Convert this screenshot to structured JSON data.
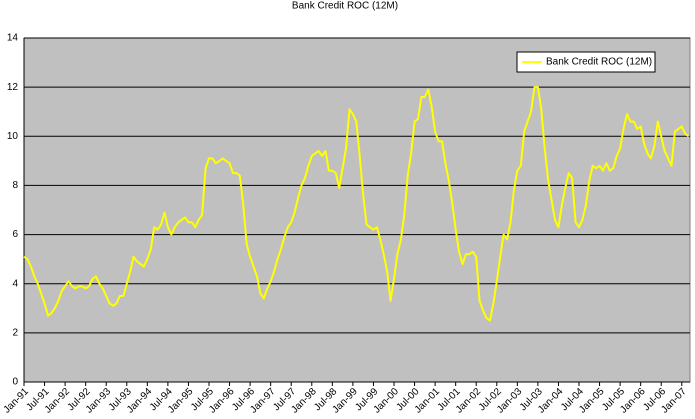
{
  "chart_data": {
    "type": "line",
    "title": "Bank Credit ROC (12M)",
    "categories": [
      "Jan-91",
      null,
      null,
      null,
      null,
      null,
      "Jul-91",
      null,
      null,
      null,
      null,
      null,
      "Jan-92",
      null,
      null,
      null,
      null,
      null,
      "Jul-92",
      null,
      null,
      null,
      null,
      null,
      "Jan-93",
      null,
      null,
      null,
      null,
      null,
      "Jul-93",
      null,
      null,
      null,
      null,
      null,
      "Jan-94",
      null,
      null,
      null,
      null,
      null,
      "Jul-94",
      null,
      null,
      null,
      null,
      null,
      "Jan-95",
      null,
      null,
      null,
      null,
      null,
      "Jul-95",
      null,
      null,
      null,
      null,
      null,
      "Jan-96",
      null,
      null,
      null,
      null,
      null,
      "Jul-96",
      null,
      null,
      null,
      null,
      null,
      "Jan-97",
      null,
      null,
      null,
      null,
      null,
      "Jul-97",
      null,
      null,
      null,
      null,
      null,
      "Jan-98",
      null,
      null,
      null,
      null,
      null,
      "Jul-98",
      null,
      null,
      null,
      null,
      null,
      "Jan-99",
      null,
      null,
      null,
      null,
      null,
      "Jul-99",
      null,
      null,
      null,
      null,
      null,
      "Jan-00",
      null,
      null,
      null,
      null,
      null,
      "Jul-00",
      null,
      null,
      null,
      null,
      null,
      "Jan-01",
      null,
      null,
      null,
      null,
      null,
      "Jul-01",
      null,
      null,
      null,
      null,
      null,
      "Jan-02",
      null,
      null,
      null,
      null,
      null,
      "Jul-02",
      null,
      null,
      null,
      null,
      null,
      "Jan-03",
      null,
      null,
      null,
      null,
      null,
      "Jul-03",
      null,
      null,
      null,
      null,
      null,
      "Jan-04",
      null,
      null,
      null,
      null,
      null,
      "Jul-04",
      null,
      null,
      null,
      null,
      null,
      "Jan-05",
      null,
      null,
      null,
      null,
      null,
      "Jul-05",
      null,
      null,
      null,
      null,
      null,
      "Jan-06",
      null,
      null,
      null,
      null,
      null,
      "Jul-06",
      null,
      null,
      null,
      null,
      null,
      "Jan-07",
      null,
      null
    ],
    "series": [
      {
        "name": "Bank Credit ROC (12M)",
        "color": "#ffff00",
        "values": [
          5.1,
          5.0,
          4.7,
          4.3,
          4.0,
          3.6,
          3.2,
          2.7,
          2.8,
          3.0,
          3.3,
          3.7,
          3.9,
          4.1,
          3.9,
          3.8,
          3.9,
          3.9,
          3.8,
          3.9,
          4.2,
          4.3,
          4.0,
          3.8,
          3.5,
          3.2,
          3.1,
          3.2,
          3.5,
          3.5,
          4.0,
          4.5,
          5.1,
          4.9,
          4.8,
          4.7,
          5.0,
          5.4,
          6.3,
          6.2,
          6.4,
          6.9,
          6.3,
          6.0,
          6.3,
          6.5,
          6.6,
          6.7,
          6.5,
          6.5,
          6.3,
          6.6,
          6.8,
          8.7,
          9.1,
          9.1,
          8.9,
          9.0,
          9.1,
          9.0,
          8.9,
          8.5,
          8.5,
          8.4,
          7.2,
          5.6,
          5.1,
          4.7,
          4.3,
          3.6,
          3.4,
          3.8,
          4.1,
          4.5,
          5.0,
          5.4,
          5.9,
          6.3,
          6.5,
          6.9,
          7.5,
          8.0,
          8.3,
          8.8,
          9.2,
          9.3,
          9.4,
          9.2,
          9.4,
          8.6,
          8.6,
          8.5,
          7.9,
          8.7,
          9.5,
          11.1,
          10.9,
          10.6,
          9.2,
          7.6,
          6.4,
          6.3,
          6.2,
          6.3,
          5.8,
          5.2,
          4.5,
          3.3,
          4.2,
          5.2,
          5.8,
          6.8,
          8.4,
          9.3,
          10.6,
          10.7,
          11.6,
          11.6,
          11.9,
          11.2,
          10.2,
          9.8,
          9.8,
          8.9,
          8.2,
          7.3,
          6.2,
          5.3,
          4.8,
          5.2,
          5.2,
          5.3,
          5.1,
          3.3,
          2.9,
          2.6,
          2.5,
          3.2,
          4.1,
          5.1,
          6.0,
          5.8,
          6.5,
          7.8,
          8.6,
          8.8,
          10.2,
          10.6,
          11.0,
          12.0,
          12.0,
          11.1,
          9.5,
          8.2,
          7.4,
          6.6,
          6.3,
          7.2,
          7.9,
          8.5,
          8.3,
          6.5,
          6.3,
          6.6,
          7.2,
          8.2,
          8.8,
          8.7,
          8.8,
          8.6,
          8.9,
          8.6,
          8.7,
          9.2,
          9.5,
          10.3,
          10.9,
          10.6,
          10.6,
          10.3,
          10.4,
          9.7,
          9.3,
          9.1,
          9.6,
          10.6,
          10.0,
          9.4,
          9.1,
          8.8,
          10.2,
          10.3,
          10.4,
          10.1,
          10.0
        ]
      }
    ],
    "ylim": [
      0,
      14
    ],
    "yticks": [
      0,
      2,
      4,
      6,
      8,
      10,
      12,
      14
    ],
    "grid": true,
    "legend": "upper right",
    "background": "#c0c0c0"
  }
}
